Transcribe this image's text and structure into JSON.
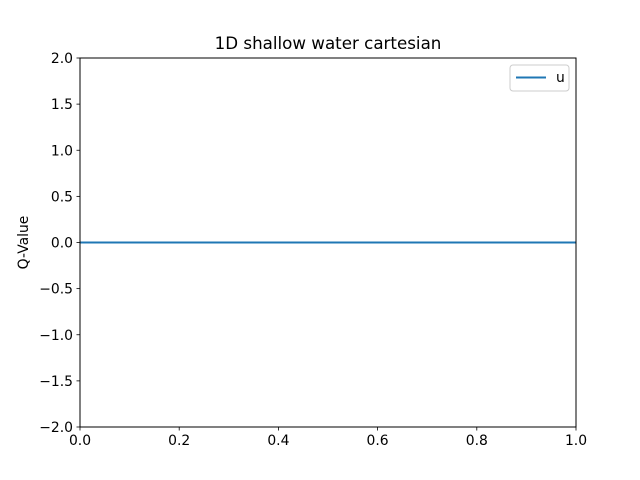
{
  "chart_data": {
    "type": "line",
    "title": "1D shallow water cartesian",
    "xlabel": "",
    "ylabel": "Q-Value",
    "xlim": [
      0.0,
      1.0
    ],
    "ylim": [
      -2.0,
      2.0
    ],
    "x_ticks": [
      0.0,
      0.2,
      0.4,
      0.6,
      0.8,
      1.0
    ],
    "x_tick_labels": [
      "0.0",
      "0.2",
      "0.4",
      "0.6",
      "0.8",
      "1.0"
    ],
    "y_ticks": [
      -2.0,
      -1.5,
      -1.0,
      -0.5,
      0.0,
      0.5,
      1.0,
      1.5,
      2.0
    ],
    "y_tick_labels": [
      "−2.0",
      "−1.5",
      "−1.0",
      "−0.5",
      "0.0",
      "0.5",
      "1.0",
      "1.5",
      "2.0"
    ],
    "grid": false,
    "legend_position": "top-right",
    "series": [
      {
        "name": "u",
        "color": "#1f77b4",
        "x": [
          0.0,
          1.0
        ],
        "y": [
          0.0,
          0.0
        ]
      }
    ]
  }
}
